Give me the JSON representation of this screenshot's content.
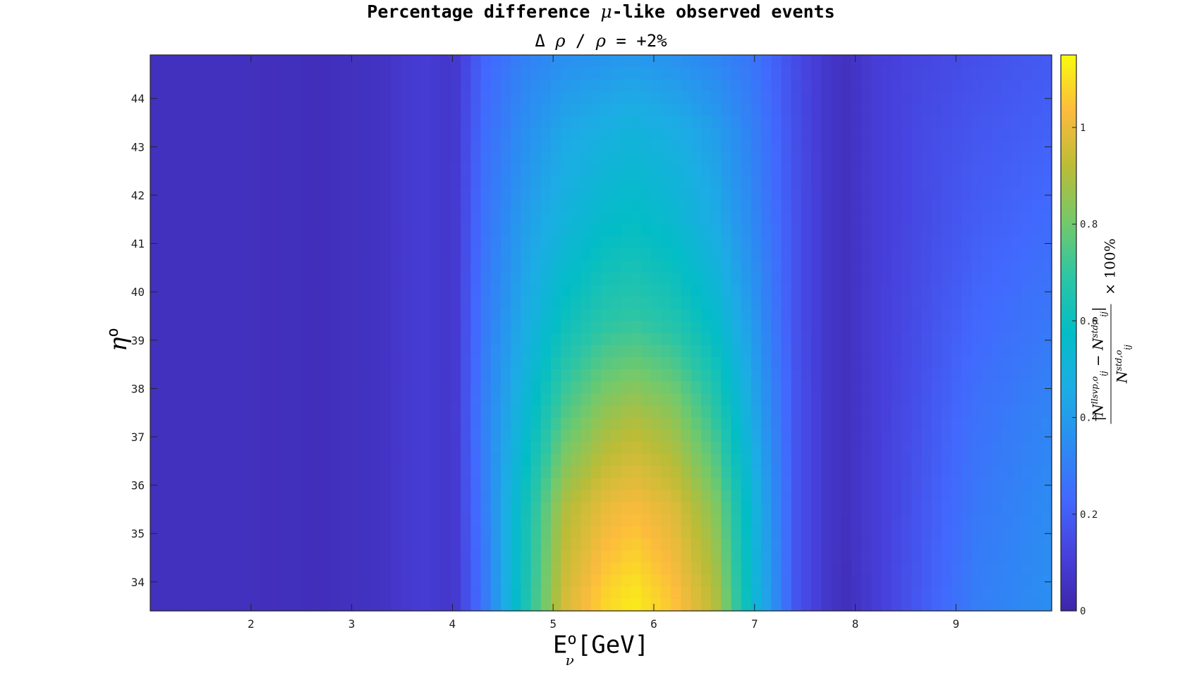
{
  "chart_data": {
    "type": "heatmap",
    "title": "Percentage difference μ-like observed events",
    "subtitle": "Δ ρ / ρ = +2%",
    "xlabel": "E^o_ν [GeV]",
    "ylabel": "η^o",
    "colorbar_label": "|N^{llsvp,o}_{ij} − N^{std,o}_{ij}| / N^{std,o}_{ij} × 100%",
    "xlim": [
      1.0,
      9.95
    ],
    "ylim": [
      33.4,
      44.9
    ],
    "clim": [
      0,
      1.15
    ],
    "x_ticks": [
      2,
      3,
      4,
      5,
      6,
      7,
      8,
      9
    ],
    "y_ticks": [
      34,
      35,
      36,
      37,
      38,
      39,
      40,
      41,
      42,
      43,
      44
    ],
    "cbar_ticks": [
      0,
      0.2,
      0.4,
      0.6,
      0.8,
      1
    ],
    "colormap": "parula",
    "x_centers": [
      1.8,
      2.7,
      3.3,
      3.7,
      4.0,
      4.3,
      4.7,
      5.1,
      5.5,
      5.8,
      6.2,
      6.6,
      7.0,
      7.4,
      7.7,
      7.9,
      8.2,
      8.6,
      9.2,
      9.9
    ],
    "y_centers": [
      33.6,
      35.5,
      37.4,
      39.4,
      41.4,
      43.3,
      44.8
    ],
    "z": [
      [
        0.05,
        0.04,
        0.06,
        0.1,
        0.07,
        0.26,
        0.62,
        0.96,
        1.08,
        1.12,
        1.05,
        0.92,
        0.52,
        0.18,
        0.08,
        0.04,
        0.1,
        0.18,
        0.3,
        0.35
      ],
      [
        0.05,
        0.04,
        0.06,
        0.1,
        0.07,
        0.28,
        0.6,
        0.9,
        1.0,
        1.03,
        0.98,
        0.84,
        0.5,
        0.18,
        0.08,
        0.05,
        0.1,
        0.17,
        0.28,
        0.34
      ],
      [
        0.05,
        0.04,
        0.06,
        0.1,
        0.07,
        0.3,
        0.52,
        0.75,
        0.86,
        0.9,
        0.85,
        0.7,
        0.44,
        0.18,
        0.08,
        0.05,
        0.1,
        0.16,
        0.26,
        0.32
      ],
      [
        0.05,
        0.04,
        0.06,
        0.1,
        0.07,
        0.28,
        0.45,
        0.6,
        0.68,
        0.7,
        0.66,
        0.56,
        0.38,
        0.17,
        0.08,
        0.05,
        0.1,
        0.15,
        0.23,
        0.28
      ],
      [
        0.05,
        0.04,
        0.06,
        0.1,
        0.07,
        0.26,
        0.4,
        0.5,
        0.56,
        0.58,
        0.54,
        0.46,
        0.33,
        0.17,
        0.08,
        0.05,
        0.1,
        0.14,
        0.2,
        0.24
      ],
      [
        0.05,
        0.04,
        0.06,
        0.1,
        0.07,
        0.24,
        0.35,
        0.44,
        0.48,
        0.5,
        0.47,
        0.41,
        0.3,
        0.16,
        0.08,
        0.05,
        0.1,
        0.14,
        0.18,
        0.21
      ],
      [
        0.05,
        0.04,
        0.06,
        0.1,
        0.07,
        0.22,
        0.31,
        0.36,
        0.38,
        0.39,
        0.37,
        0.33,
        0.27,
        0.15,
        0.08,
        0.05,
        0.1,
        0.13,
        0.16,
        0.19
      ]
    ]
  }
}
